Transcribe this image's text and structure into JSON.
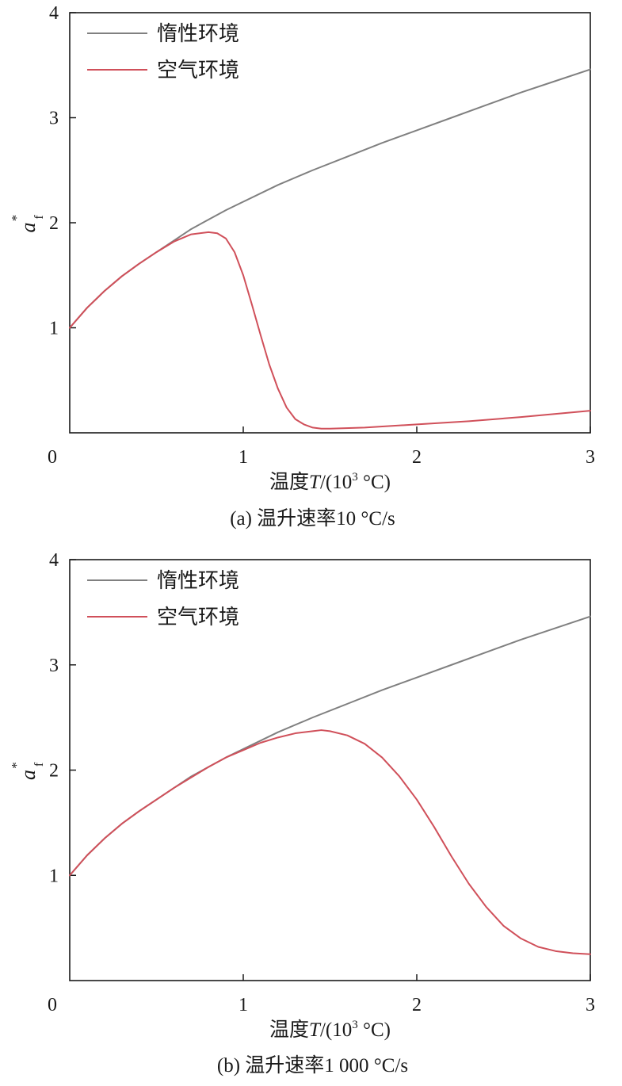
{
  "figure": {
    "panels": [
      {
        "caption": "(a) 温升速率10 °C/s",
        "xlabel": "温度",
        "xlabel_var": "T",
        "xlabel_unit_open": "/(10",
        "xlabel_unit_exp": "3",
        "xlabel_unit_close": " °C)",
        "ylabel_var": "a",
        "ylabel_sub": "f",
        "ylabel_sup": "*"
      },
      {
        "caption": "(b) 温升速率1 000 °C/s",
        "xlabel": "温度",
        "xlabel_var": "T",
        "xlabel_unit_open": "/(10",
        "xlabel_unit_exp": "3",
        "xlabel_unit_close": " °C)",
        "ylabel_var": "a",
        "ylabel_sub": "f",
        "ylabel_sup": "*"
      }
    ]
  },
  "chart_data": [
    {
      "type": "line",
      "title": "(a) 温升速率10 °C/s",
      "xlabel": "温度T/(10³ °C)",
      "ylabel": "a_f*",
      "xlim": [
        0,
        3
      ],
      "ylim": [
        0,
        4
      ],
      "xticks": [
        0,
        1,
        2,
        3
      ],
      "yticks": [
        1,
        2,
        3,
        4
      ],
      "grid": false,
      "legend_position": "top-left",
      "series": [
        {
          "name": "惰性环境",
          "color": "#808080",
          "x": [
            0,
            0.1,
            0.2,
            0.3,
            0.4,
            0.5,
            0.6,
            0.7,
            0.8,
            0.9,
            1.0,
            1.2,
            1.4,
            1.6,
            1.8,
            2.0,
            2.2,
            2.4,
            2.6,
            2.8,
            3.0
          ],
          "y": [
            1.0,
            1.19,
            1.35,
            1.49,
            1.61,
            1.72,
            1.83,
            1.94,
            2.03,
            2.12,
            2.2,
            2.36,
            2.5,
            2.63,
            2.76,
            2.88,
            3.0,
            3.12,
            3.24,
            3.35,
            3.46
          ]
        },
        {
          "name": "空气环境",
          "color": "#d0505a",
          "x": [
            0,
            0.1,
            0.2,
            0.3,
            0.4,
            0.5,
            0.6,
            0.7,
            0.8,
            0.85,
            0.9,
            0.95,
            1.0,
            1.05,
            1.1,
            1.15,
            1.2,
            1.25,
            1.3,
            1.35,
            1.4,
            1.45,
            1.5,
            1.7,
            2.0,
            2.3,
            2.6,
            3.0
          ],
          "y": [
            1.0,
            1.19,
            1.35,
            1.49,
            1.61,
            1.72,
            1.82,
            1.89,
            1.91,
            1.9,
            1.85,
            1.72,
            1.5,
            1.22,
            0.93,
            0.65,
            0.42,
            0.24,
            0.13,
            0.08,
            0.05,
            0.04,
            0.04,
            0.05,
            0.08,
            0.11,
            0.15,
            0.21
          ]
        }
      ]
    },
    {
      "type": "line",
      "title": "(b) 温升速率1 000 °C/s",
      "xlabel": "温度T/(10³ °C)",
      "ylabel": "a_f*",
      "xlim": [
        0,
        3
      ],
      "ylim": [
        0,
        4
      ],
      "xticks": [
        0,
        1,
        2,
        3
      ],
      "yticks": [
        1,
        2,
        3,
        4
      ],
      "grid": false,
      "legend_position": "top-left",
      "series": [
        {
          "name": "惰性环境",
          "color": "#808080",
          "x": [
            0,
            0.1,
            0.2,
            0.3,
            0.4,
            0.5,
            0.6,
            0.7,
            0.8,
            0.9,
            1.0,
            1.2,
            1.4,
            1.6,
            1.8,
            2.0,
            2.2,
            2.4,
            2.6,
            2.8,
            3.0
          ],
          "y": [
            1.0,
            1.19,
            1.35,
            1.49,
            1.61,
            1.72,
            1.83,
            1.94,
            2.03,
            2.12,
            2.2,
            2.36,
            2.5,
            2.63,
            2.76,
            2.88,
            3.0,
            3.12,
            3.24,
            3.35,
            3.46
          ]
        },
        {
          "name": "空气环境",
          "color": "#d0505a",
          "x": [
            0,
            0.1,
            0.2,
            0.3,
            0.4,
            0.5,
            0.6,
            0.7,
            0.8,
            0.9,
            1.0,
            1.1,
            1.2,
            1.3,
            1.4,
            1.45,
            1.5,
            1.6,
            1.7,
            1.8,
            1.9,
            2.0,
            2.1,
            2.2,
            2.3,
            2.4,
            2.5,
            2.6,
            2.7,
            2.8,
            2.9,
            3.0
          ],
          "y": [
            1.0,
            1.19,
            1.35,
            1.49,
            1.61,
            1.72,
            1.83,
            1.93,
            2.03,
            2.12,
            2.19,
            2.26,
            2.31,
            2.35,
            2.37,
            2.38,
            2.37,
            2.33,
            2.25,
            2.12,
            1.94,
            1.72,
            1.46,
            1.18,
            0.92,
            0.7,
            0.52,
            0.4,
            0.32,
            0.28,
            0.26,
            0.25
          ]
        }
      ]
    }
  ]
}
